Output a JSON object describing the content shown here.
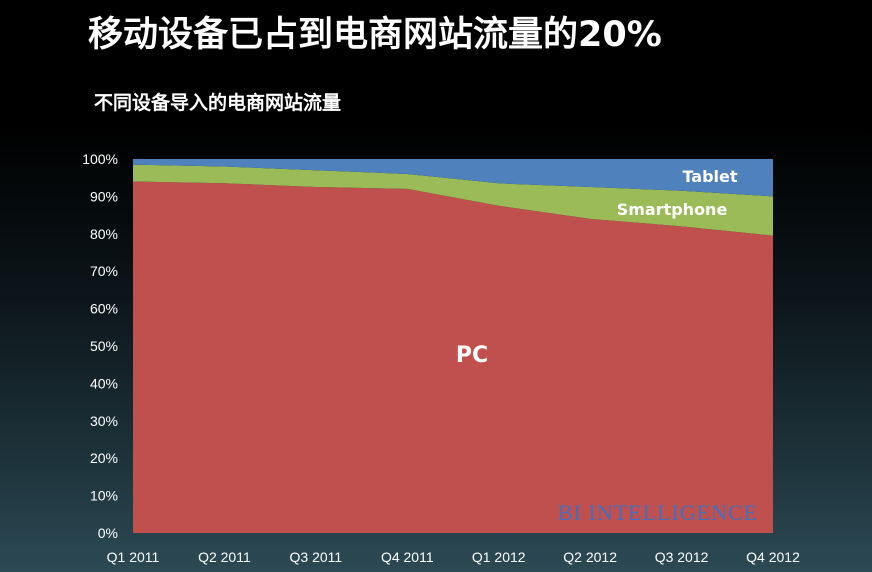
{
  "title": "移动设备已占到电商网站流量的20%",
  "subtitle": "不同设备导入的电商网站流量",
  "watermark": "BI INTELLIGENCE",
  "chart_data": {
    "type": "area",
    "stacked": true,
    "categories": [
      "Q1 2011",
      "Q2 2011",
      "Q3 2011",
      "Q4 2011",
      "Q1 2012",
      "Q2 2012",
      "Q3 2012",
      "Q4 2012"
    ],
    "series": [
      {
        "name": "PC",
        "values": [
          94,
          93.5,
          92.5,
          92,
          87.5,
          84,
          82,
          79.5
        ],
        "color": "#c0504d"
      },
      {
        "name": "Smartphone",
        "values": [
          4.5,
          4.5,
          4.5,
          4,
          6,
          8.5,
          9.5,
          10.5
        ],
        "color": "#9bbb59"
      },
      {
        "name": "Tablet",
        "values": [
          1.5,
          2,
          3,
          4,
          6.5,
          7.5,
          8.5,
          10
        ],
        "color": "#4f81bd"
      }
    ],
    "y_ticks": [
      "0%",
      "10%",
      "20%",
      "30%",
      "40%",
      "50%",
      "60%",
      "70%",
      "80%",
      "90%",
      "100%"
    ],
    "ylim": [
      0,
      100
    ],
    "grid": false,
    "legend": "inline labels"
  }
}
